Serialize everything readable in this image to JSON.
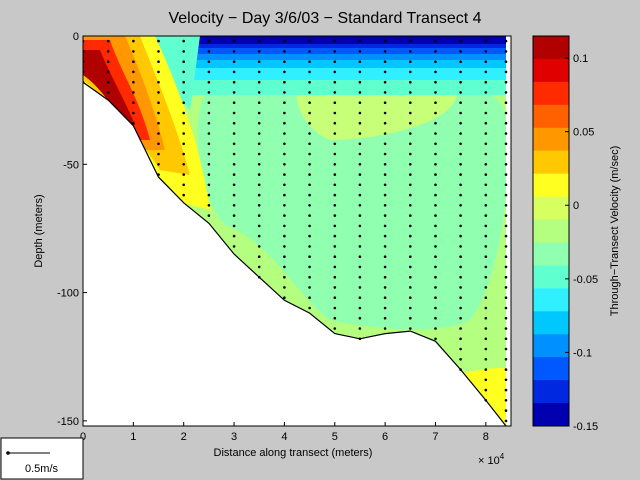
{
  "chart_data": {
    "type": "heatmap",
    "title": "Velocity − Day 3/6/03 − Standard Transect 4",
    "xlabel": "Distance along transect (meters)",
    "ylabel": "Depth (meters)",
    "x_multiplier": "× 10",
    "x_multiplier_exp": "4",
    "xlim": [
      0,
      85000
    ],
    "ylim": [
      -152,
      0
    ],
    "x_ticks": [
      0,
      1,
      2,
      3,
      4,
      5,
      6,
      7,
      8
    ],
    "y_ticks": [
      0,
      -50,
      -100,
      -150
    ],
    "colorbar": {
      "label": "Through−Transect Velocity (m/sec)",
      "range": [
        -0.15,
        0.115
      ],
      "ticks": [
        0.1,
        0.05,
        0,
        -0.05,
        -0.1,
        -0.15
      ],
      "colors": [
        "#b00000",
        "#e00000",
        "#ff2a00",
        "#ff6000",
        "#ff9800",
        "#ffc800",
        "#ffff20",
        "#d8ff60",
        "#b4ff80",
        "#90ffb0",
        "#60ffd0",
        "#30f0ff",
        "#00c8ff",
        "#0090ff",
        "#0058ff",
        "#0028e0",
        "#0000b0"
      ]
    },
    "scale_arrow": {
      "label": "0.5m/s"
    },
    "bottom_profile": [
      [
        0,
        -18
      ],
      [
        5000,
        -25
      ],
      [
        10000,
        -35
      ],
      [
        15000,
        -55
      ],
      [
        20000,
        -65
      ],
      [
        25000,
        -73
      ],
      [
        30000,
        -85
      ],
      [
        35000,
        -94
      ],
      [
        40000,
        -103
      ],
      [
        45000,
        -108
      ],
      [
        50000,
        -116
      ],
      [
        55000,
        -118
      ],
      [
        60000,
        -116
      ],
      [
        65000,
        -115
      ],
      [
        70000,
        -119
      ],
      [
        75000,
        -130
      ],
      [
        80000,
        -142
      ],
      [
        84000,
        -152
      ]
    ],
    "station_x": [
      0,
      5000,
      10000,
      15000,
      20000,
      25000,
      30000,
      35000,
      40000,
      45000,
      50000,
      55000,
      60000,
      65000,
      70000,
      75000,
      80000,
      84000
    ],
    "velocity_regions": [
      {
        "value": 0.0,
        "color": "#b4ff80",
        "description": "background"
      }
    ]
  }
}
